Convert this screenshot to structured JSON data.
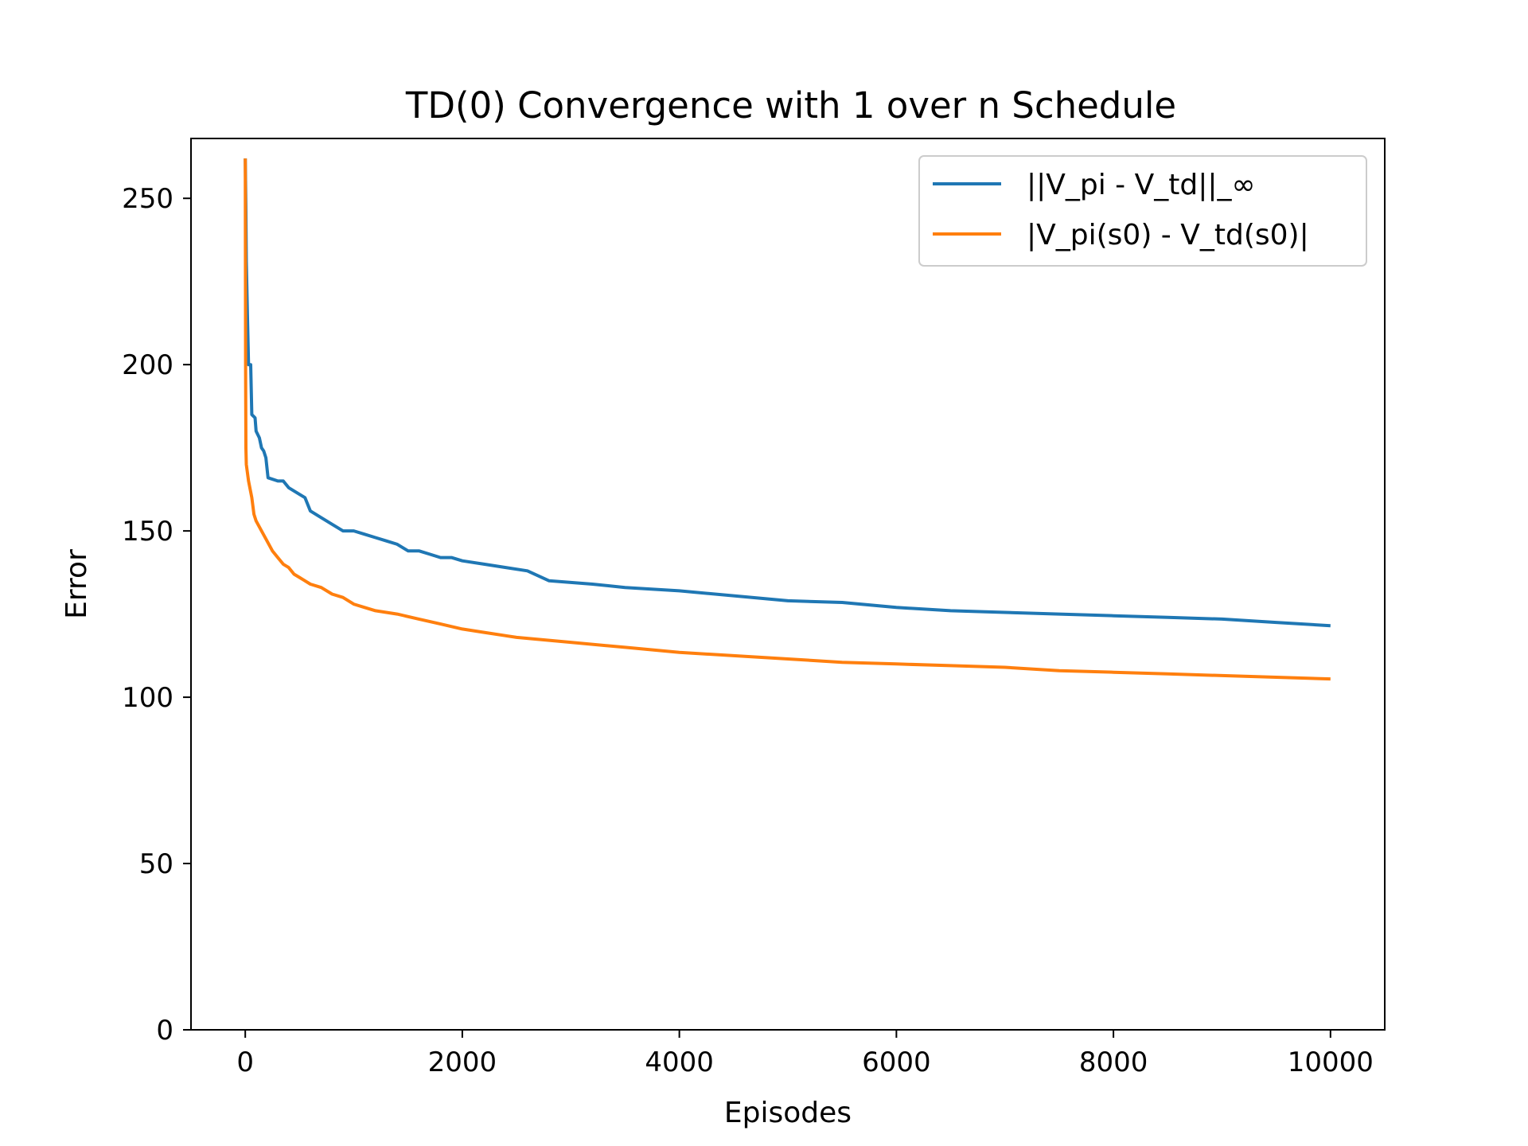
{
  "chart_data": {
    "type": "line",
    "title": "TD(0) Convergence with 1 over n Schedule",
    "xlabel": "Episodes",
    "ylabel": "Error",
    "xlim": [
      -500,
      10500
    ],
    "ylim": [
      0,
      268
    ],
    "xticks": [
      0,
      2000,
      4000,
      6000,
      8000,
      10000
    ],
    "yticks": [
      0,
      50,
      100,
      150,
      200,
      250
    ],
    "xtick_labels": [
      "0",
      "2000",
      "4000",
      "6000",
      "8000",
      "10000"
    ],
    "ytick_labels": [
      "0",
      "50",
      "100",
      "150",
      "200",
      "250"
    ],
    "grid": false,
    "legend": {
      "position": "top-right"
    },
    "series": [
      {
        "name": "||V_pi - V_td||_∞",
        "color": "#1f77b4",
        "points": [
          [
            0,
            262
          ],
          [
            5,
            248
          ],
          [
            10,
            231
          ],
          [
            20,
            215
          ],
          [
            30,
            200
          ],
          [
            50,
            200
          ],
          [
            60,
            185
          ],
          [
            90,
            184
          ],
          [
            100,
            180
          ],
          [
            130,
            178
          ],
          [
            150,
            175
          ],
          [
            170,
            174
          ],
          [
            190,
            172
          ],
          [
            210,
            166
          ],
          [
            300,
            165
          ],
          [
            350,
            165
          ],
          [
            400,
            163
          ],
          [
            500,
            161
          ],
          [
            550,
            160
          ],
          [
            600,
            156
          ],
          [
            700,
            154
          ],
          [
            800,
            152
          ],
          [
            900,
            150
          ],
          [
            1000,
            150
          ],
          [
            1100,
            149
          ],
          [
            1200,
            148
          ],
          [
            1300,
            147
          ],
          [
            1400,
            146
          ],
          [
            1500,
            144
          ],
          [
            1600,
            144
          ],
          [
            1700,
            143
          ],
          [
            1800,
            142
          ],
          [
            1900,
            142
          ],
          [
            2000,
            141
          ],
          [
            2200,
            140
          ],
          [
            2400,
            139
          ],
          [
            2600,
            138
          ],
          [
            2800,
            135
          ],
          [
            3000,
            134.5
          ],
          [
            3200,
            134
          ],
          [
            3500,
            133
          ],
          [
            4000,
            132
          ],
          [
            4500,
            130.5
          ],
          [
            5000,
            129
          ],
          [
            5500,
            128.5
          ],
          [
            6000,
            127
          ],
          [
            6500,
            126
          ],
          [
            7000,
            125.5
          ],
          [
            7500,
            125
          ],
          [
            8000,
            124.5
          ],
          [
            8500,
            124
          ],
          [
            9000,
            123.5
          ],
          [
            9500,
            122.5
          ],
          [
            10000,
            121.5
          ]
        ]
      },
      {
        "name": "|V_pi(s0) - V_td(s0)|",
        "color": "#ff7f0e",
        "points": [
          [
            0,
            262
          ],
          [
            3,
            200
          ],
          [
            6,
            175
          ],
          [
            10,
            170
          ],
          [
            30,
            165
          ],
          [
            60,
            160
          ],
          [
            80,
            155
          ],
          [
            100,
            153
          ],
          [
            150,
            150
          ],
          [
            200,
            147
          ],
          [
            250,
            144
          ],
          [
            300,
            142
          ],
          [
            350,
            140
          ],
          [
            400,
            139
          ],
          [
            450,
            137
          ],
          [
            500,
            136
          ],
          [
            550,
            135
          ],
          [
            600,
            134
          ],
          [
            700,
            133
          ],
          [
            800,
            131
          ],
          [
            900,
            130
          ],
          [
            1000,
            128
          ],
          [
            1100,
            127
          ],
          [
            1200,
            126
          ],
          [
            1400,
            125
          ],
          [
            1600,
            123.5
          ],
          [
            1800,
            122
          ],
          [
            2000,
            120.5
          ],
          [
            2200,
            119.5
          ],
          [
            2500,
            118
          ],
          [
            3000,
            116.5
          ],
          [
            3500,
            115
          ],
          [
            4000,
            113.5
          ],
          [
            4500,
            112.5
          ],
          [
            5000,
            111.5
          ],
          [
            5500,
            110.5
          ],
          [
            6000,
            110
          ],
          [
            6500,
            109.5
          ],
          [
            7000,
            109
          ],
          [
            7500,
            108
          ],
          [
            8000,
            107.5
          ],
          [
            8500,
            107
          ],
          [
            9000,
            106.5
          ],
          [
            9500,
            106
          ],
          [
            10000,
            105.5
          ]
        ]
      }
    ]
  }
}
